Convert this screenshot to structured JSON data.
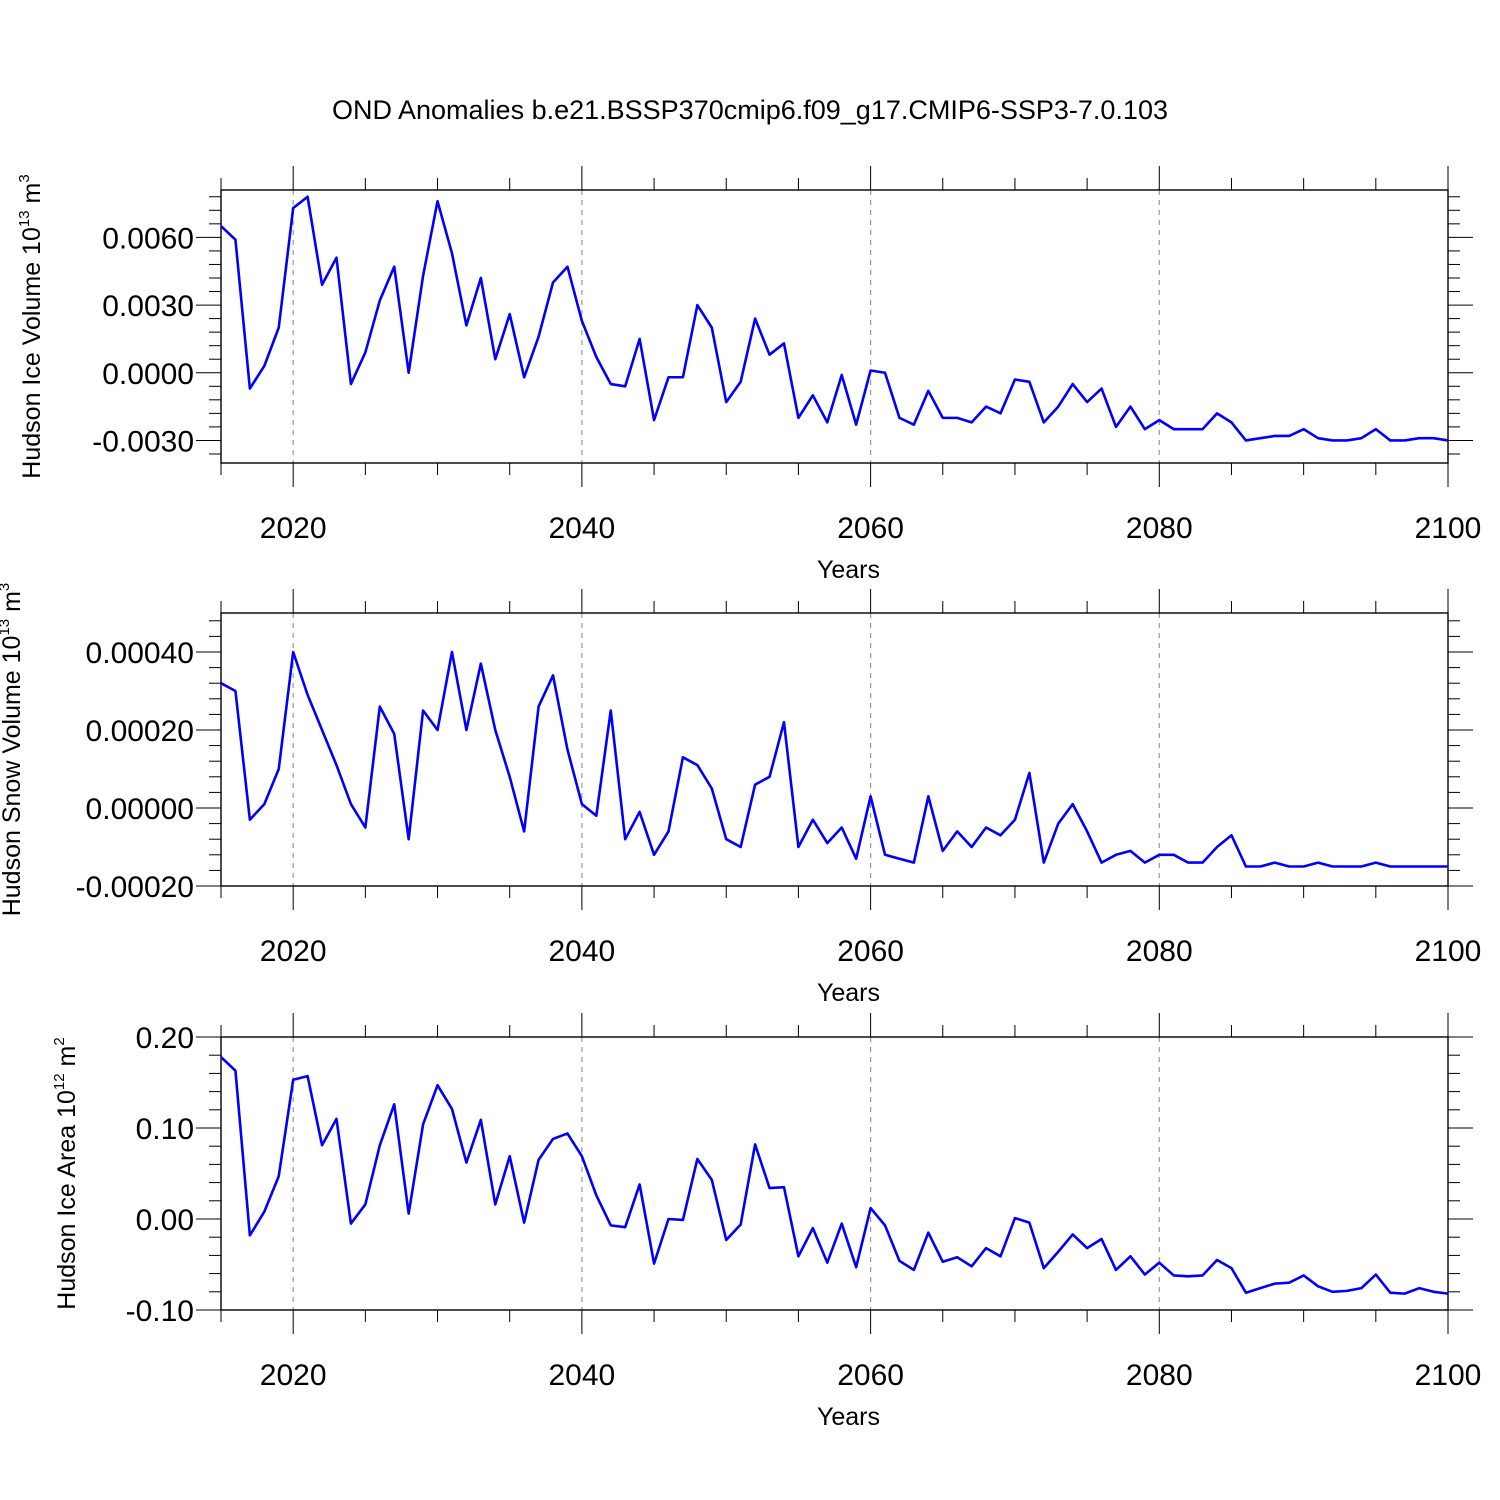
{
  "title": "OND Anomalies b.e21.BSSP370cmip6.f09_g17.CMIP6-SSP3-7.0.103",
  "line_color": "#0000ff",
  "chart_data": [
    {
      "type": "line",
      "ylabel": {
        "base": "Hudson Ice Volume 10",
        "exp": "13",
        "unit": " m",
        "unit_exp": "3"
      },
      "xlabel": "Years",
      "xlim": [
        2015,
        2100
      ],
      "ylim": [
        -0.004,
        0.0081
      ],
      "yticks": [
        -0.003,
        0.0,
        0.003,
        0.006
      ],
      "ytick_labels": [
        "-0.0030",
        "0.0000",
        "0.0030",
        "0.0060"
      ],
      "xticks": [
        2020,
        2040,
        2060,
        2080,
        2100
      ],
      "xtick_labels": [
        "2020",
        "2040",
        "2060",
        "2080",
        "2100"
      ],
      "series": [
        {
          "name": "Hudson Ice Volume",
          "x_start": 2015,
          "values": [
            0.0065,
            0.0059,
            -0.0007,
            0.0003,
            0.002,
            0.0073,
            0.0078,
            0.0039,
            0.0051,
            -0.0005,
            0.0009,
            0.0032,
            0.0047,
            0.0,
            0.0043,
            0.0076,
            0.0053,
            0.0021,
            0.0042,
            0.0006,
            0.0026,
            -0.0002,
            0.0016,
            0.004,
            0.0047,
            0.0023,
            0.0007,
            -0.0005,
            -0.0006,
            0.0015,
            -0.0021,
            -0.0002,
            -0.0002,
            0.003,
            0.002,
            -0.0013,
            -0.0004,
            0.0024,
            0.0008,
            0.0013,
            -0.002,
            -0.001,
            -0.0022,
            -0.0001,
            -0.0023,
            0.0001,
            0.0,
            -0.002,
            -0.0023,
            -0.0008,
            -0.002,
            -0.002,
            -0.0022,
            -0.0015,
            -0.0018,
            -0.0003,
            -0.0004,
            -0.0022,
            -0.0015,
            -0.0005,
            -0.0013,
            -0.0007,
            -0.0024,
            -0.0015,
            -0.0025,
            -0.0021,
            -0.0025,
            -0.0025,
            -0.0025,
            -0.0018,
            -0.0022,
            -0.003,
            -0.0029,
            -0.0028,
            -0.0028,
            -0.0025,
            -0.0029,
            -0.003,
            -0.003,
            -0.0029,
            -0.0025,
            -0.003,
            -0.003,
            -0.0029,
            -0.0029,
            -0.003
          ]
        }
      ]
    },
    {
      "type": "line",
      "ylabel": {
        "base": "Hudson Snow Volume 10",
        "exp": "13",
        "unit": " m",
        "unit_exp": "3"
      },
      "xlabel": "Years",
      "xlim": [
        2015,
        2100
      ],
      "ylim": [
        -0.0002,
        0.0005
      ],
      "yticks": [
        -0.0002,
        0.0,
        0.0002,
        0.0004
      ],
      "ytick_labels": [
        "-0.00020",
        "0.00000",
        "0.00020",
        "0.00040"
      ],
      "xticks": [
        2020,
        2040,
        2060,
        2080,
        2100
      ],
      "xtick_labels": [
        "2020",
        "2040",
        "2060",
        "2080",
        "2100"
      ],
      "series": [
        {
          "name": "Hudson Snow Volume",
          "x_start": 2015,
          "values": [
            0.00032,
            0.0003,
            -3e-05,
            1e-05,
            0.0001,
            0.0004,
            0.00029,
            0.0002,
            0.00011,
            1e-05,
            -5e-05,
            0.00026,
            0.00019,
            -8e-05,
            0.00025,
            0.0002,
            0.0004,
            0.0002,
            0.00037,
            0.0002,
            8e-05,
            -6e-05,
            0.00026,
            0.00034,
            0.00015,
            1e-05,
            -2e-05,
            0.00025,
            -8e-05,
            -1e-05,
            -0.00012,
            -6e-05,
            0.00013,
            0.00011,
            5e-05,
            -8e-05,
            -0.0001,
            6e-05,
            8e-05,
            0.00022,
            -0.0001,
            -3e-05,
            -9e-05,
            -5e-05,
            -0.00013,
            3e-05,
            -0.00012,
            -0.00013,
            -0.00014,
            3e-05,
            -0.00011,
            -6e-05,
            -0.0001,
            -5e-05,
            -7e-05,
            -3e-05,
            9e-05,
            -0.00014,
            -4e-05,
            1e-05,
            -6e-05,
            -0.00014,
            -0.00012,
            -0.00011,
            -0.00014,
            -0.00012,
            -0.00012,
            -0.00014,
            -0.00014,
            -0.0001,
            -7e-05,
            -0.00015,
            -0.00015,
            -0.00014,
            -0.00015,
            -0.00015,
            -0.00014,
            -0.00015,
            -0.00015,
            -0.00015,
            -0.00014,
            -0.00015,
            -0.00015,
            -0.00015,
            -0.00015,
            -0.00015
          ]
        }
      ]
    },
    {
      "type": "line",
      "ylabel": {
        "base": "Hudson Ice Area 10",
        "exp": "12",
        "unit": " m",
        "unit_exp": "2"
      },
      "xlabel": "Years",
      "xlim": [
        2015,
        2100
      ],
      "ylim": [
        -0.1,
        0.2
      ],
      "yticks": [
        -0.1,
        0.0,
        0.1,
        0.2
      ],
      "ytick_labels": [
        "-0.10",
        "0.00",
        "0.10",
        "0.20"
      ],
      "xticks": [
        2020,
        2040,
        2060,
        2080,
        2100
      ],
      "xtick_labels": [
        "2020",
        "2040",
        "2060",
        "2080",
        "2100"
      ],
      "series": [
        {
          "name": "Hudson Ice Area",
          "x_start": 2015,
          "values": [
            0.178,
            0.163,
            -0.018,
            0.008,
            0.047,
            0.153,
            0.157,
            0.081,
            0.11,
            -0.005,
            0.016,
            0.081,
            0.126,
            0.006,
            0.104,
            0.147,
            0.121,
            0.062,
            0.109,
            0.016,
            0.069,
            -0.004,
            0.065,
            0.088,
            0.094,
            0.069,
            0.026,
            -0.007,
            -0.009,
            0.038,
            -0.049,
            0.0,
            -0.001,
            0.066,
            0.043,
            -0.023,
            -0.006,
            0.082,
            0.034,
            0.035,
            -0.041,
            -0.01,
            -0.048,
            -0.005,
            -0.053,
            0.012,
            -0.007,
            -0.046,
            -0.056,
            -0.015,
            -0.047,
            -0.042,
            -0.052,
            -0.032,
            -0.041,
            0.001,
            -0.004,
            -0.054,
            -0.036,
            -0.017,
            -0.032,
            -0.022,
            -0.056,
            -0.041,
            -0.061,
            -0.048,
            -0.062,
            -0.063,
            -0.062,
            -0.045,
            -0.054,
            -0.081,
            -0.076,
            -0.071,
            -0.07,
            -0.062,
            -0.074,
            -0.08,
            -0.079,
            -0.076,
            -0.061,
            -0.081,
            -0.082,
            -0.076,
            -0.08,
            -0.082
          ]
        }
      ]
    }
  ]
}
